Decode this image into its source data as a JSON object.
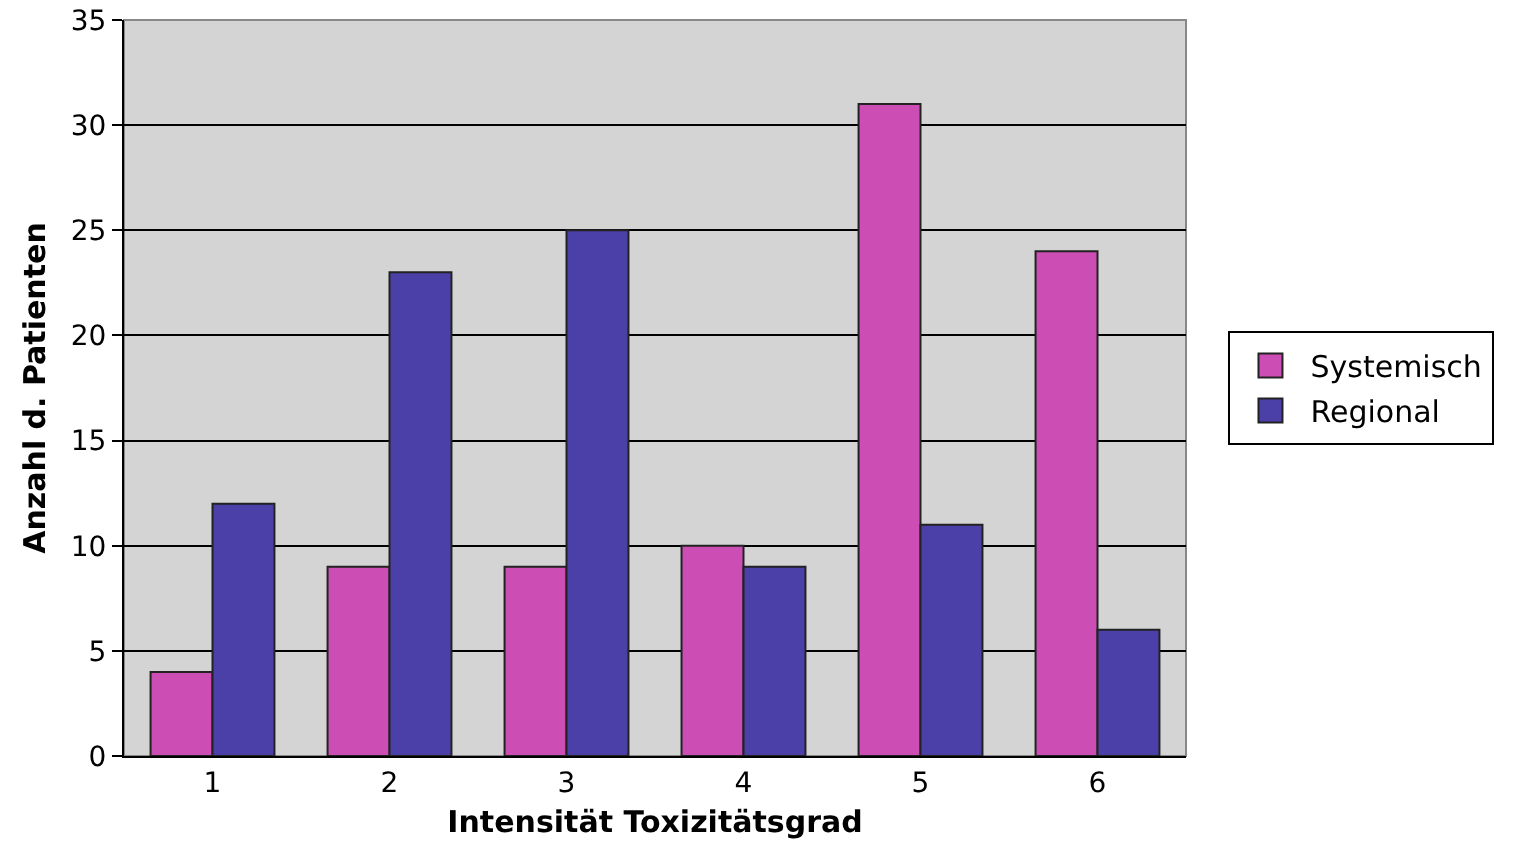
{
  "chart_data": {
    "type": "bar",
    "xlabel": "Intensität Toxizitätsgrad",
    "ylabel": "Anzahl d. Patienten",
    "categories": [
      "1",
      "2",
      "3",
      "4",
      "5",
      "6"
    ],
    "series": [
      {
        "name": "Systemisch",
        "color": "#cc4db3",
        "values": [
          4,
          9,
          9,
          10,
          31,
          24
        ]
      },
      {
        "name": "Regional",
        "color": "#4b3fa8",
        "values": [
          12,
          23,
          25,
          9,
          11,
          6
        ]
      }
    ],
    "ylim": [
      0,
      35
    ],
    "yticks": [
      0,
      5,
      10,
      15,
      20,
      25,
      30,
      35
    ],
    "grid": "y",
    "legend": "right"
  }
}
